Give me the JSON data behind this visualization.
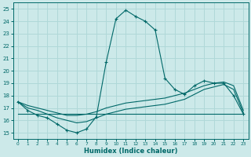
{
  "xlabel": "Humidex (Indice chaleur)",
  "xlim": [
    -0.5,
    23.5
  ],
  "ylim": [
    14.5,
    25.5
  ],
  "yticks": [
    15,
    16,
    17,
    18,
    19,
    20,
    21,
    22,
    23,
    24,
    25
  ],
  "xticks": [
    0,
    1,
    2,
    3,
    4,
    5,
    6,
    7,
    8,
    9,
    10,
    11,
    12,
    13,
    14,
    15,
    16,
    17,
    18,
    19,
    20,
    21,
    22,
    23
  ],
  "bg_color": "#cce9e9",
  "line_color": "#006868",
  "grid_color": "#b0d8d8",
  "lines": [
    {
      "x": [
        0,
        1,
        2,
        3,
        4,
        5,
        6,
        7,
        8,
        9,
        10,
        11,
        12,
        13,
        14,
        15,
        16,
        17,
        18,
        19,
        20,
        21,
        22,
        23
      ],
      "y": [
        17.5,
        16.8,
        16.4,
        16.2,
        15.7,
        15.2,
        15.0,
        15.3,
        16.3,
        20.7,
        24.2,
        24.9,
        24.4,
        24.0,
        23.3,
        19.4,
        18.5,
        18.1,
        18.8,
        19.2,
        19.0,
        19.0,
        18.0,
        16.5
      ],
      "marker": "+"
    },
    {
      "x": [
        0,
        1,
        2,
        3,
        4,
        5,
        6,
        7,
        8,
        9,
        10,
        11,
        12,
        13,
        14,
        15,
        16,
        17,
        18,
        19,
        20,
        21,
        22,
        23
      ],
      "y": [
        16.5,
        16.5,
        16.5,
        16.5,
        16.5,
        16.5,
        16.5,
        16.5,
        16.5,
        16.5,
        16.5,
        16.5,
        16.5,
        16.5,
        16.5,
        16.5,
        16.5,
        16.5,
        16.5,
        16.5,
        16.5,
        16.5,
        16.5,
        16.5
      ],
      "marker": null
    },
    {
      "x": [
        0,
        1,
        2,
        3,
        4,
        5,
        6,
        7,
        8,
        9,
        10,
        11,
        12,
        13,
        14,
        15,
        16,
        17,
        18,
        19,
        20,
        21,
        22,
        23
      ],
      "y": [
        17.5,
        17.2,
        17.0,
        16.8,
        16.6,
        16.4,
        16.4,
        16.5,
        16.7,
        17.0,
        17.2,
        17.4,
        17.5,
        17.6,
        17.7,
        17.8,
        18.0,
        18.2,
        18.5,
        18.8,
        19.0,
        19.1,
        18.8,
        16.8
      ],
      "marker": null
    },
    {
      "x": [
        0,
        1,
        2,
        3,
        4,
        5,
        6,
        7,
        8,
        9,
        10,
        11,
        12,
        13,
        14,
        15,
        16,
        17,
        18,
        19,
        20,
        21,
        22,
        23
      ],
      "y": [
        17.5,
        17.0,
        16.8,
        16.5,
        16.2,
        16.0,
        15.8,
        15.9,
        16.2,
        16.5,
        16.7,
        16.9,
        17.0,
        17.1,
        17.2,
        17.3,
        17.5,
        17.7,
        18.1,
        18.5,
        18.7,
        18.9,
        18.5,
        16.6
      ],
      "marker": null
    }
  ]
}
